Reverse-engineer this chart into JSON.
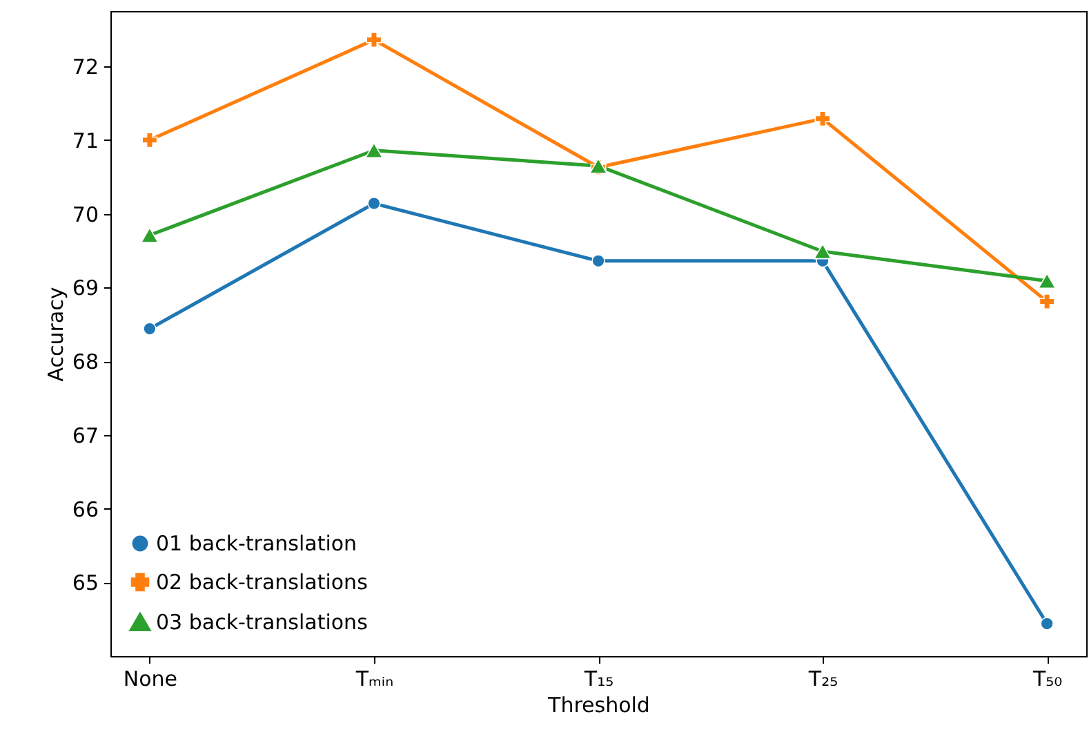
{
  "chart_data": {
    "type": "line",
    "xlabel": "Threshold",
    "ylabel": "Accuracy",
    "categories": [
      "None",
      "Tₘᵢₙ",
      "T₁₅",
      "T₂₅",
      "T₅₀"
    ],
    "series": [
      {
        "name": "01 back-translation",
        "color": "#1f77b4",
        "marker": "circle",
        "values": [
          68.44,
          70.14,
          69.36,
          69.36,
          64.44
        ]
      },
      {
        "name": "02 back-translations",
        "color": "#ff7f0e",
        "marker": "cross",
        "values": [
          71.0,
          72.36,
          70.63,
          71.29,
          68.81
        ]
      },
      {
        "name": "03 back-translations",
        "color": "#2ca02c",
        "marker": "triangle",
        "values": [
          69.71,
          70.86,
          70.65,
          69.49,
          69.09
        ]
      }
    ],
    "ylim": [
      64.0,
      72.75
    ],
    "yticks": [
      65,
      66,
      67,
      68,
      69,
      70,
      71,
      72
    ],
    "grid": false,
    "legend": "bottom left",
    "line_style": "solid"
  }
}
